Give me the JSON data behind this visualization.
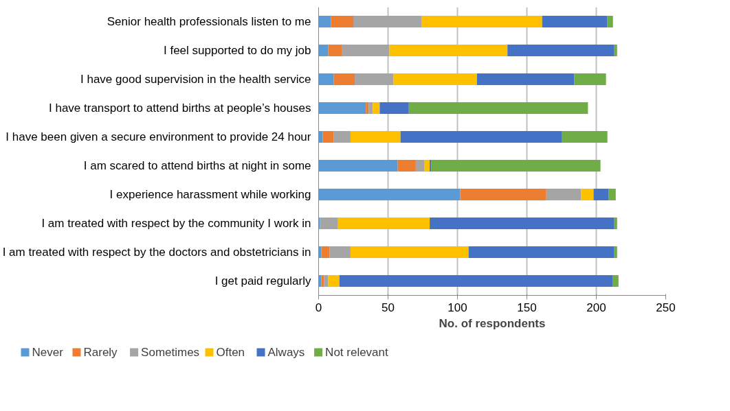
{
  "chart_data": {
    "type": "bar",
    "orientation": "horizontal",
    "stacked": true,
    "xlabel": "No. of respondents",
    "categories": [
      "Senior health professionals listen to me",
      "I feel supported to do my job",
      "I have good supervision in the health service",
      "I have transport to attend births at people’s houses",
      "I have been given a secure environment to provide 24 hour",
      "I am scared to attend births at night in some",
      "I experience harassment while working",
      "I am treated with respect by the community I work in",
      "I am treated with respect by the doctors and obstetricians in",
      "I get paid regularly"
    ],
    "series": [
      {
        "name": "Never",
        "color": "#5b9bd5",
        "values": [
          9,
          7,
          11,
          34,
          3,
          57,
          102,
          1,
          2,
          2
        ]
      },
      {
        "name": "Rarely",
        "color": "#ed7d31",
        "values": [
          16,
          10,
          15,
          2,
          8,
          13,
          62,
          0,
          6,
          2
        ]
      },
      {
        "name": "Sometimes",
        "color": "#a5a5a5",
        "values": [
          49,
          34,
          28,
          3,
          12,
          6,
          25,
          13,
          15,
          3
        ]
      },
      {
        "name": "Often",
        "color": "#ffc000",
        "values": [
          87,
          85,
          60,
          5,
          36,
          4,
          9,
          66,
          85,
          8
        ]
      },
      {
        "name": "Always",
        "color": "#4472c4",
        "values": [
          47,
          77,
          70,
          21,
          116,
          1,
          11,
          133,
          105,
          197
        ]
      },
      {
        "name": "Not relevant",
        "color": "#70ad47",
        "values": [
          4,
          2,
          23,
          129,
          33,
          122,
          5,
          2,
          2,
          4
        ]
      }
    ],
    "xlim": [
      0,
      250
    ],
    "xticks": [
      0,
      50,
      100,
      150,
      200,
      250
    ],
    "grid": "x",
    "legend": "bottom left"
  }
}
